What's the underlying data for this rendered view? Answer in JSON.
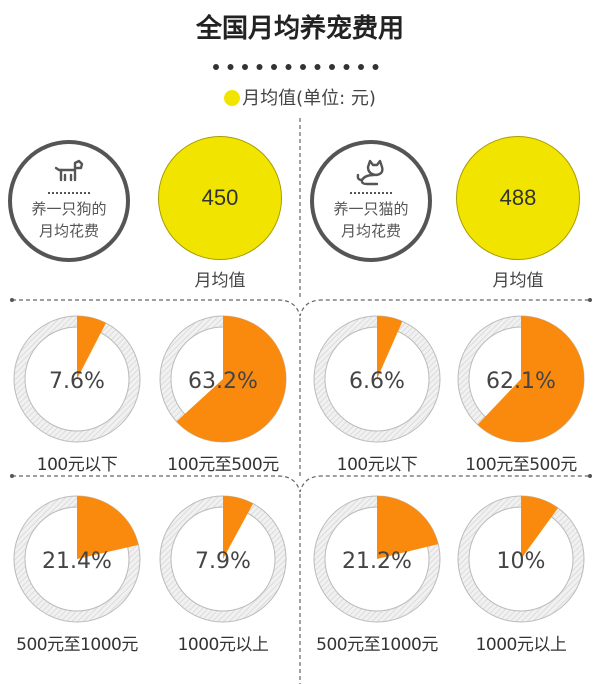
{
  "title": "全国月均养宠费用",
  "legend": {
    "label": "月均值(单位: 元)",
    "color": "#f1e500"
  },
  "colors": {
    "slice": "#f98a0d",
    "ring": "#dcdcdc",
    "avg_fill": "#f1e500"
  },
  "dog": {
    "icon": "dog-icon",
    "caption_line1": "养一只狗的",
    "caption_line2": "月均花费",
    "average_value": "450",
    "average_label": "月均值"
  },
  "cat": {
    "icon": "cat-icon",
    "caption_line1": "养一只猫的",
    "caption_line2": "月均花费",
    "average_value": "488",
    "average_label": "月均值"
  },
  "chart_data": [
    {
      "type": "pie",
      "group": "dog",
      "categories": [
        "100元以下",
        "100元至500元",
        "500元至1000元",
        "1000元以上"
      ],
      "values": [
        7.6,
        63.2,
        21.4,
        7.9
      ],
      "labels": [
        "7.6%",
        "63.2%",
        "21.4%",
        "7.9%"
      ]
    },
    {
      "type": "pie",
      "group": "cat",
      "categories": [
        "100元以下",
        "100元至500元",
        "500元至1000元",
        "1000元以上"
      ],
      "values": [
        6.6,
        62.1,
        21.2,
        10
      ],
      "labels": [
        "6.6%",
        "62.1%",
        "21.2%",
        "10%"
      ]
    }
  ]
}
